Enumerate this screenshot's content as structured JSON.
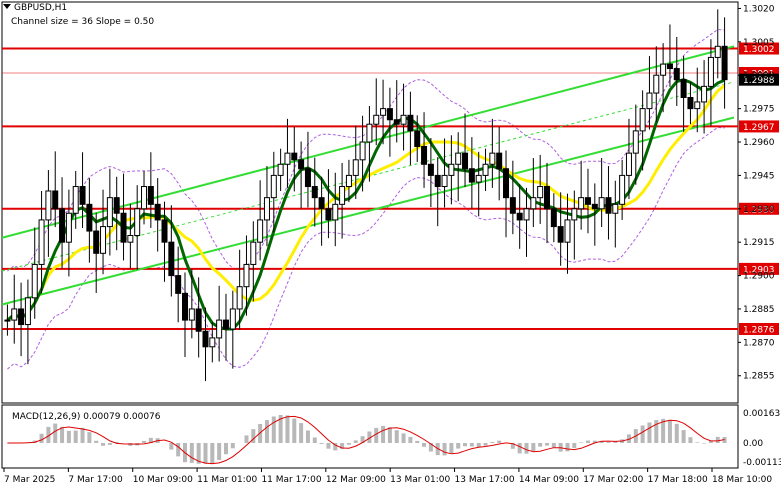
{
  "header": {
    "symbol": "GBPUSD,H1",
    "channel_info": "Channel size = 36 Slope = 0.50"
  },
  "macd": {
    "label": "MACD(12,26,9) 0.00079 0.00076",
    "ticks": [
      "0.00163",
      "0.00",
      "-0.00113"
    ]
  },
  "price_axis": {
    "ticks": [
      "1.3020",
      "1.3005",
      "1.2990",
      "1.2975",
      "1.2960",
      "1.2945",
      "1.2930",
      "1.2915",
      "1.2900",
      "1.2885",
      "1.2870",
      "1.2855"
    ]
  },
  "levels": [
    {
      "label": "1.3002",
      "value": 1.3002
    },
    {
      "label": "1.2991",
      "value": 1.2991
    },
    {
      "label": "1.2988",
      "value": 1.2988
    },
    {
      "label": "1.2967",
      "value": 1.2967
    },
    {
      "label": "1.2930",
      "value": 1.293
    },
    {
      "label": "1.2903",
      "value": 1.2903
    },
    {
      "label": "1.2876",
      "value": 1.2876
    }
  ],
  "time_axis": {
    "labels": [
      "7 Mar 2025",
      "7 Mar 17:00",
      "10 Mar 09:00",
      "11 Mar 01:00",
      "11 Mar 17:00",
      "12 Mar 09:00",
      "13 Mar 01:00",
      "13 Mar 17:00",
      "14 Mar 09:00",
      "17 Mar 02:00",
      "17 Mar 18:00",
      "18 Mar 10:00"
    ]
  },
  "colors": {
    "level_line": "#e00000",
    "level_label_bg": "#e00000",
    "current_price_bg": "#000000",
    "channel": "#33dd33",
    "ma_green": "#006600",
    "ma_yellow": "#ffee00",
    "envelope": "#b060e0",
    "candle": "#000000",
    "macd_hist": "#b8b8b8",
    "macd_signal": "#e00000"
  },
  "chart_data": {
    "type": "candlestick",
    "symbol": "GBPUSD",
    "timeframe": "H1",
    "y_range": [
      1.2845,
      1.3022
    ],
    "closes": [
      1.288,
      1.2885,
      1.2878,
      1.289,
      1.2905,
      1.2925,
      1.2938,
      1.293,
      1.2915,
      1.2928,
      1.294,
      1.2932,
      1.292,
      1.291,
      1.2922,
      1.2935,
      1.2928,
      1.2915,
      1.2918,
      1.293,
      1.294,
      1.2932,
      1.2925,
      1.2915,
      1.29,
      1.2892,
      1.288,
      1.2885,
      1.2875,
      1.2868,
      1.2872,
      1.288,
      1.2876,
      1.2885,
      1.2895,
      1.2905,
      1.2915,
      1.2925,
      1.2935,
      1.2945,
      1.295,
      1.2955,
      1.2952,
      1.2948,
      1.294,
      1.2935,
      1.293,
      1.2925,
      1.2932,
      1.294,
      1.2945,
      1.2952,
      1.296,
      1.2968,
      1.2972,
      1.2975,
      1.297,
      1.2968,
      1.2972,
      1.2965,
      1.2958,
      1.295,
      1.2945,
      1.294,
      1.2945,
      1.295,
      1.2955,
      1.2948,
      1.2942,
      1.2945,
      1.295,
      1.2955,
      1.2948,
      1.2935,
      1.2928,
      1.2925,
      1.293,
      1.2935,
      1.294,
      1.293,
      1.2922,
      1.2915,
      1.2925,
      1.293,
      1.2935,
      1.2932,
      1.293,
      1.2935,
      1.2928,
      1.2932,
      1.2945,
      1.2955,
      1.2965,
      1.2975,
      1.2982,
      1.299,
      1.2995,
      1.2993,
      1.2988,
      1.298,
      1.2975,
      1.2978,
      1.2985,
      1.2998,
      1.3003,
      1.2988
    ]
  }
}
